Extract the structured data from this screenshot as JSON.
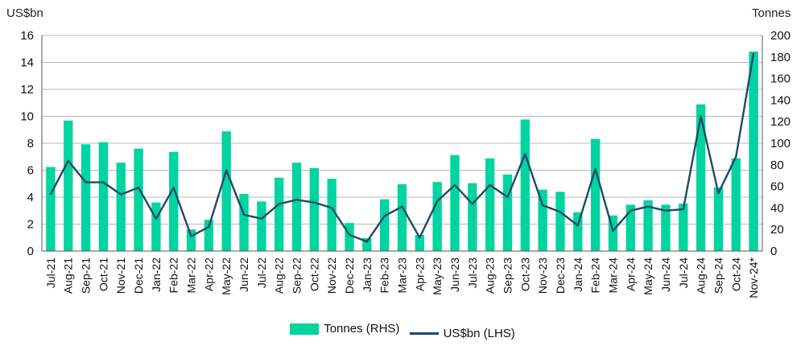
{
  "chart_data": {
    "type": "bar",
    "left_axis_title": "US$bn",
    "right_axis_title": "Tonnes",
    "left_ylim": [
      0,
      16
    ],
    "left_ticks": [
      "0",
      "2",
      "4",
      "6",
      "8",
      "10",
      "12",
      "14",
      "16"
    ],
    "right_ylim": [
      0,
      200
    ],
    "right_ticks": [
      "0",
      "20",
      "40",
      "60",
      "80",
      "100",
      "120",
      "140",
      "160",
      "180",
      "200"
    ],
    "grid": true,
    "legend_position": "bottom-center",
    "categories": [
      "Jul-21",
      "Aug-21",
      "Sep-21",
      "Oct-21",
      "Nov-21",
      "Dec-21",
      "Jan-22",
      "Feb-22",
      "Mar-22",
      "Apr-22",
      "May-22",
      "Jun-22",
      "Jul-22",
      "Aug-22",
      "Sep-22",
      "Oct-22",
      "Nov-22",
      "Dec-22",
      "Jan-23",
      "Feb-23",
      "Mar-23",
      "Apr-23",
      "May-23",
      "Jun-23",
      "Jul-23",
      "Aug-23",
      "Sep-23",
      "Oct-23",
      "Nov-23",
      "Dec-23",
      "Jan-24",
      "Feb-24",
      "Mar-24",
      "Apr-24",
      "May-24",
      "Jun-24",
      "Jul-24",
      "Aug-24",
      "Sep-24",
      "Oct-24",
      "Nov-24*"
    ],
    "series": [
      {
        "name": "Tonnes (RHS)",
        "type": "bar",
        "axis": "right",
        "color": "#00d4a0",
        "values": [
          78,
          121,
          99,
          101,
          82,
          95,
          45,
          92,
          20,
          29,
          111,
          53,
          46,
          68,
          82,
          77,
          67,
          26,
          12,
          48,
          62,
          15,
          64,
          89,
          63,
          86,
          71,
          122,
          57,
          55,
          36,
          104,
          33,
          43,
          47,
          43,
          44,
          136,
          59,
          86,
          185
        ]
      },
      {
        "name": "US$bn (LHS)",
        "type": "line",
        "axis": "left",
        "color": "#1e4a68",
        "values": [
          4.2,
          6.7,
          5.1,
          5.1,
          4.2,
          4.7,
          2.4,
          4.7,
          1.1,
          1.8,
          6.0,
          2.7,
          2.4,
          3.5,
          3.8,
          3.6,
          3.2,
          1.2,
          0.7,
          2.6,
          3.3,
          1.0,
          3.7,
          4.9,
          3.5,
          4.9,
          4.0,
          7.2,
          3.4,
          2.9,
          1.9,
          6.1,
          1.5,
          3.0,
          3.3,
          3.0,
          3.1,
          10.0,
          4.3,
          7.0,
          14.7
        ]
      }
    ]
  }
}
